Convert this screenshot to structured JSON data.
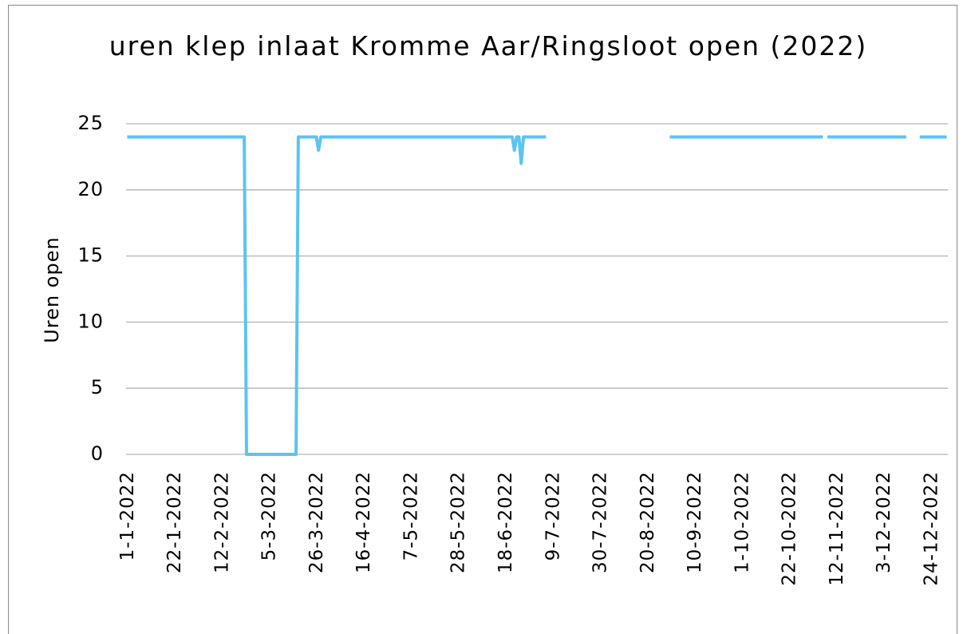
{
  "chart_data": {
    "type": "line",
    "title": "uren klep inlaat Kromme Aar/Ringsloot open (2022)",
    "y_label": "Uren open",
    "categories": [
      "1-1-2022",
      null,
      null,
      null,
      null,
      null,
      null,
      null,
      null,
      null,
      null,
      null,
      null,
      null,
      null,
      null,
      null,
      null,
      null,
      null,
      null,
      "22-1-2022",
      null,
      null,
      null,
      null,
      null,
      null,
      null,
      null,
      null,
      null,
      null,
      null,
      null,
      null,
      null,
      null,
      null,
      null,
      null,
      null,
      "12-2-2022",
      null,
      null,
      null,
      null,
      null,
      null,
      null,
      null,
      null,
      null,
      null,
      null,
      null,
      null,
      null,
      null,
      null,
      null,
      null,
      null,
      "5-3-2022",
      null,
      null,
      null,
      null,
      null,
      null,
      null,
      null,
      null,
      null,
      null,
      null,
      null,
      null,
      null,
      null,
      null,
      null,
      null,
      null,
      "26-3-2022",
      null,
      null,
      null,
      null,
      null,
      null,
      null,
      null,
      null,
      null,
      null,
      null,
      null,
      null,
      null,
      null,
      null,
      null,
      null,
      null,
      "16-4-2022",
      null,
      null,
      null,
      null,
      null,
      null,
      null,
      null,
      null,
      null,
      null,
      null,
      null,
      null,
      null,
      null,
      null,
      null,
      null,
      null,
      "7-5-2022",
      null,
      null,
      null,
      null,
      null,
      null,
      null,
      null,
      null,
      null,
      null,
      null,
      null,
      null,
      null,
      null,
      null,
      null,
      null,
      null,
      "28-5-2022",
      null,
      null,
      null,
      null,
      null,
      null,
      null,
      null,
      null,
      null,
      null,
      null,
      null,
      null,
      null,
      null,
      null,
      null,
      null,
      null,
      "18-6-2022",
      null,
      null,
      null,
      null,
      null,
      null,
      null,
      null,
      null,
      null,
      null,
      null,
      null,
      null,
      null,
      null,
      null,
      null,
      null,
      null,
      "9-7-2022",
      null,
      null,
      null,
      null,
      null,
      null,
      null,
      null,
      null,
      null,
      null,
      null,
      null,
      null,
      null,
      null,
      null,
      null,
      null,
      null,
      "30-7-2022",
      null,
      null,
      null,
      null,
      null,
      null,
      null,
      null,
      null,
      null,
      null,
      null,
      null,
      null,
      null,
      null,
      null,
      null,
      null,
      null,
      "20-8-2022",
      null,
      null,
      null,
      null,
      null,
      null,
      null,
      null,
      null,
      null,
      null,
      null,
      null,
      null,
      null,
      null,
      null,
      null,
      null,
      null,
      "10-9-2022",
      null,
      null,
      null,
      null,
      null,
      null,
      null,
      null,
      null,
      null,
      null,
      null,
      null,
      null,
      null,
      null,
      null,
      null,
      null,
      null,
      "1-10-2022",
      null,
      null,
      null,
      null,
      null,
      null,
      null,
      null,
      null,
      null,
      null,
      null,
      null,
      null,
      null,
      null,
      null,
      null,
      null,
      null,
      "22-10-2022",
      null,
      null,
      null,
      null,
      null,
      null,
      null,
      null,
      null,
      null,
      null,
      null,
      null,
      null,
      null,
      null,
      null,
      null,
      null,
      null,
      "12-11-2022",
      null,
      null,
      null,
      null,
      null,
      null,
      null,
      null,
      null,
      null,
      null,
      null,
      null,
      null,
      null,
      null,
      null,
      null,
      null,
      null,
      "3-12-2022",
      null,
      null,
      null,
      null,
      null,
      null,
      null,
      null,
      null,
      null,
      null,
      null,
      null,
      null,
      null,
      null,
      null,
      null,
      null,
      null,
      "24-12-2022",
      null,
      null,
      null,
      null,
      null,
      null,
      null
    ],
    "series": [
      {
        "name": "Uren open",
        "color": "#5bc4f0",
        "values": [
          24,
          24,
          24,
          24,
          24,
          24,
          24,
          24,
          24,
          24,
          24,
          24,
          24,
          24,
          24,
          24,
          24,
          24,
          24,
          24,
          24,
          24,
          24,
          24,
          24,
          24,
          24,
          24,
          24,
          24,
          24,
          24,
          24,
          24,
          24,
          24,
          24,
          24,
          24,
          24,
          24,
          24,
          24,
          24,
          24,
          24,
          24,
          24,
          24,
          24,
          24,
          24,
          24,
          0,
          0,
          0,
          0,
          0,
          0,
          0,
          0,
          0,
          0,
          0,
          0,
          0,
          0,
          0,
          0,
          0,
          0,
          0,
          0,
          0,
          0,
          0,
          24,
          24,
          24,
          24,
          24,
          24,
          24,
          24,
          24,
          23,
          24,
          24,
          24,
          24,
          24,
          24,
          24,
          24,
          24,
          24,
          24,
          24,
          24,
          24,
          24,
          24,
          24,
          24,
          24,
          24,
          24,
          24,
          24,
          24,
          24,
          24,
          24,
          24,
          24,
          24,
          24,
          24,
          24,
          24,
          24,
          24,
          24,
          24,
          24,
          24,
          24,
          24,
          24,
          24,
          24,
          24,
          24,
          24,
          24,
          24,
          24,
          24,
          24,
          24,
          24,
          24,
          24,
          24,
          24,
          24,
          24,
          24,
          24,
          24,
          24,
          24,
          24,
          24,
          24,
          24,
          24,
          24,
          24,
          24,
          24,
          24,
          24,
          24,
          24,
          24,
          24,
          24,
          24,
          24,
          24,
          24,
          23,
          24,
          24,
          22,
          24,
          24,
          24,
          24,
          24,
          24,
          24,
          24,
          24,
          24,
          24,
          null,
          null,
          null,
          null,
          null,
          null,
          null,
          null,
          null,
          null,
          null,
          null,
          null,
          null,
          null,
          null,
          null,
          null,
          null,
          null,
          null,
          null,
          null,
          null,
          null,
          null,
          null,
          null,
          null,
          null,
          null,
          null,
          null,
          null,
          null,
          null,
          null,
          null,
          null,
          null,
          null,
          null,
          null,
          null,
          null,
          null,
          null,
          null,
          null,
          null,
          null,
          null,
          null,
          null,
          24,
          24,
          24,
          24,
          24,
          24,
          24,
          24,
          24,
          24,
          24,
          24,
          24,
          24,
          24,
          24,
          24,
          24,
          24,
          24,
          24,
          24,
          24,
          24,
          24,
          24,
          24,
          24,
          24,
          24,
          24,
          24,
          24,
          24,
          24,
          24,
          24,
          24,
          24,
          24,
          24,
          24,
          24,
          24,
          24,
          24,
          24,
          24,
          24,
          24,
          24,
          24,
          24,
          24,
          24,
          24,
          24,
          24,
          24,
          24,
          24,
          24,
          24,
          24,
          24,
          24,
          24,
          24,
          24,
          null,
          24,
          24,
          24,
          24,
          24,
          24,
          24,
          24,
          24,
          24,
          24,
          24,
          24,
          24,
          24,
          24,
          24,
          24,
          24,
          24,
          24,
          24,
          24,
          24,
          24,
          24,
          24,
          24,
          24,
          24,
          24,
          24,
          24,
          24,
          24,
          24,
          null,
          null,
          null,
          null,
          null,
          24,
          24,
          24,
          24,
          24,
          24,
          24,
          24,
          24,
          24,
          24,
          24,
          24
        ]
      }
    ],
    "ylim": [
      0,
      25
    ],
    "yticks": [
      0,
      5,
      10,
      15,
      20,
      25
    ],
    "grid": true
  }
}
